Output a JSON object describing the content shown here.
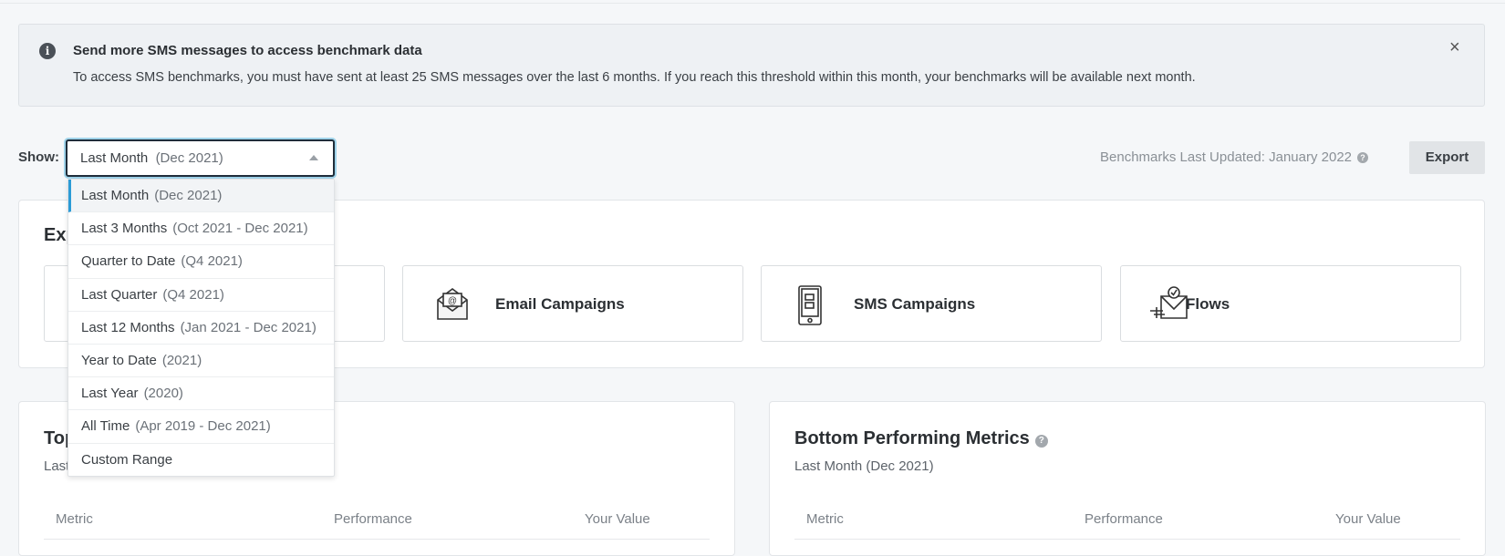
{
  "banner": {
    "icon": "info-icon",
    "title": "Send more SMS messages to access benchmark data",
    "body": "To access SMS benchmarks, you must have sent at least 25 SMS messages over the last 6 months. If you reach this threshold within this month, your benchmarks will be available next month.",
    "close": "×"
  },
  "filter": {
    "label": "Show:",
    "selected": "Last Month",
    "selected_sub": "(Dec 2021)",
    "options": [
      {
        "label": "Last Month",
        "sub": "(Dec 2021)"
      },
      {
        "label": "Last 3 Months",
        "sub": "(Oct 2021 - Dec 2021)"
      },
      {
        "label": "Quarter to Date",
        "sub": "(Q4 2021)"
      },
      {
        "label": "Last Quarter",
        "sub": "(Q4 2021)"
      },
      {
        "label": "Last 12 Months",
        "sub": "(Jan 2021 - Dec 2021)"
      },
      {
        "label": "Year to Date",
        "sub": "(2021)"
      },
      {
        "label": "Last Year",
        "sub": "(2020)"
      },
      {
        "label": "All Time",
        "sub": "(Apr 2019 - Dec 2021)"
      },
      {
        "label": "Custom Range",
        "sub": ""
      }
    ]
  },
  "header": {
    "updated": "Benchmarks Last Updated: January 2022",
    "export": "Export"
  },
  "explore": {
    "title": "Exp",
    "tiles": [
      {
        "label": ""
      },
      {
        "label": "Email Campaigns",
        "icon": "email-icon"
      },
      {
        "label": "SMS Campaigns",
        "icon": "phone-icon"
      },
      {
        "label": "Flows",
        "icon": "flows-icon"
      }
    ]
  },
  "top": {
    "title": "Top",
    "subtitle": "Last",
    "columns": [
      "Metric",
      "Performance",
      "Your Value"
    ]
  },
  "bottom": {
    "title": "Bottom Performing Metrics",
    "subtitle": "Last Month (Dec 2021)",
    "columns": [
      "Metric",
      "Performance",
      "Your Value"
    ]
  },
  "colors": {
    "accent": "#2b9bd6",
    "focus_ring": "#9fd3ea"
  }
}
